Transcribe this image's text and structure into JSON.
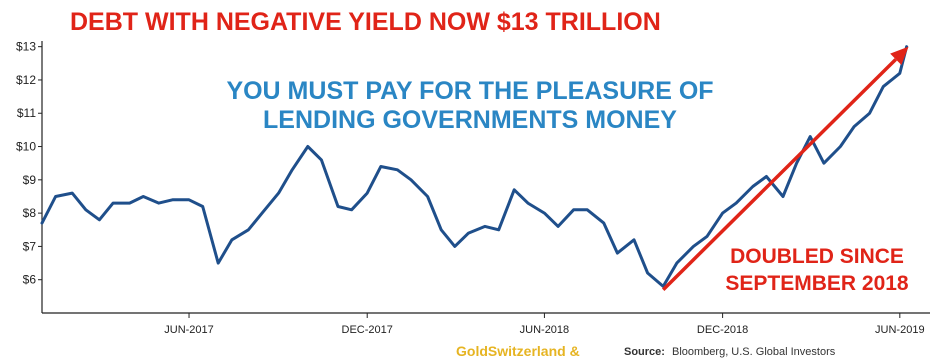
{
  "chart_data": {
    "type": "line",
    "title": "DEBT WITH NEGATIVE YIELD NOW $13 TRILLION",
    "subtitle_lines": [
      "YOU MUST PAY FOR THE PLEASURE OF",
      "LENDING GOVERNMENTS MONEY"
    ],
    "annotation_lines": [
      "DOUBLED SINCE",
      "SEPTEMBER 2018"
    ],
    "xlabel": "",
    "ylabel": "",
    "y_ticks": [
      "$6",
      "$7",
      "$8",
      "$9",
      "$10",
      "$11",
      "$12",
      "$13"
    ],
    "y_tick_values": [
      6,
      7,
      8,
      9,
      10,
      11,
      12,
      13
    ],
    "ylim": [
      5.0,
      13.05
    ],
    "xlim": [
      "2017-01-01",
      "2019-07-02"
    ],
    "x_ticks": [
      {
        "label": "JUN-2017",
        "date": "2017-06-01"
      },
      {
        "label": "DEC-2017",
        "date": "2017-12-01"
      },
      {
        "label": "JUN-2018",
        "date": "2018-06-01"
      },
      {
        "label": "DEC-2018",
        "date": "2018-12-01"
      },
      {
        "label": "JUN-2019",
        "date": "2019-06-01"
      }
    ],
    "grid": false,
    "series": [
      {
        "color": "#1f4f8b",
        "points": [
          [
            "2017-01-01",
            7.7
          ],
          [
            "2017-01-15",
            8.5
          ],
          [
            "2017-02-01",
            8.6
          ],
          [
            "2017-02-15",
            8.1
          ],
          [
            "2017-03-01",
            7.8
          ],
          [
            "2017-03-15",
            8.3
          ],
          [
            "2017-04-01",
            8.3
          ],
          [
            "2017-04-15",
            8.5
          ],
          [
            "2017-05-01",
            8.3
          ],
          [
            "2017-05-15",
            8.4
          ],
          [
            "2017-06-01",
            8.4
          ],
          [
            "2017-06-15",
            8.2
          ],
          [
            "2017-07-01",
            6.5
          ],
          [
            "2017-07-15",
            7.2
          ],
          [
            "2017-08-01",
            7.5
          ],
          [
            "2017-08-15",
            8.0
          ],
          [
            "2017-09-01",
            8.6
          ],
          [
            "2017-09-15",
            9.3
          ],
          [
            "2017-10-01",
            10.0
          ],
          [
            "2017-10-15",
            9.6
          ],
          [
            "2017-11-01",
            8.2
          ],
          [
            "2017-11-15",
            8.1
          ],
          [
            "2017-12-01",
            8.6
          ],
          [
            "2017-12-15",
            9.4
          ],
          [
            "2018-01-01",
            9.3
          ],
          [
            "2018-01-15",
            9.0
          ],
          [
            "2018-02-01",
            8.5
          ],
          [
            "2018-02-15",
            7.5
          ],
          [
            "2018-03-01",
            7.0
          ],
          [
            "2018-03-15",
            7.4
          ],
          [
            "2018-04-01",
            7.6
          ],
          [
            "2018-04-15",
            7.5
          ],
          [
            "2018-05-01",
            8.7
          ],
          [
            "2018-05-15",
            8.3
          ],
          [
            "2018-06-01",
            8.0
          ],
          [
            "2018-06-15",
            7.6
          ],
          [
            "2018-07-01",
            8.1
          ],
          [
            "2018-07-15",
            8.1
          ],
          [
            "2018-08-01",
            7.7
          ],
          [
            "2018-08-15",
            6.8
          ],
          [
            "2018-09-01",
            7.2
          ],
          [
            "2018-09-15",
            6.2
          ],
          [
            "2018-10-01",
            5.8
          ],
          [
            "2018-10-15",
            6.5
          ],
          [
            "2018-11-01",
            7.0
          ],
          [
            "2018-11-15",
            7.3
          ],
          [
            "2018-12-01",
            8.0
          ],
          [
            "2018-12-15",
            8.3
          ],
          [
            "2019-01-01",
            8.8
          ],
          [
            "2019-01-15",
            9.1
          ],
          [
            "2019-02-01",
            8.5
          ],
          [
            "2019-02-15",
            9.5
          ],
          [
            "2019-03-01",
            10.3
          ],
          [
            "2019-03-15",
            9.5
          ],
          [
            "2019-04-01",
            10.0
          ],
          [
            "2019-04-15",
            10.6
          ],
          [
            "2019-05-01",
            11.0
          ],
          [
            "2019-05-15",
            11.8
          ],
          [
            "2019-06-01",
            12.2
          ],
          [
            "2019-06-08",
            13.0
          ]
        ]
      }
    ],
    "arrow": {
      "from": [
        "2018-10-01",
        5.7
      ],
      "to": [
        "2019-06-10",
        13.0
      ],
      "color": "#e02418"
    },
    "colors": {
      "title": "#e02418",
      "subtitle": "#2a86c4",
      "line": "#1f4f8b",
      "axis": "#222222"
    }
  },
  "footer": {
    "brand": "GoldSwitzerland &",
    "source_label": "Source:",
    "source_text": "Bloomberg, U.S. Global Investors"
  }
}
